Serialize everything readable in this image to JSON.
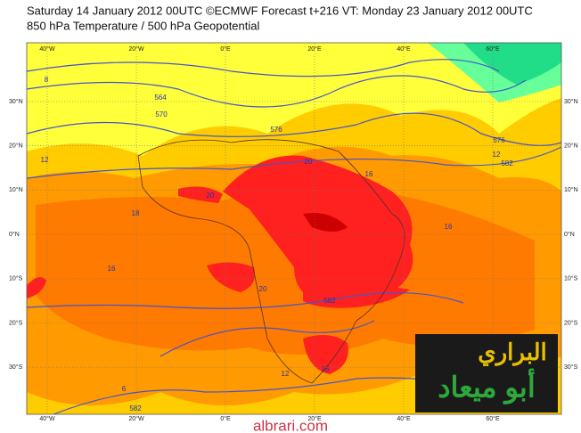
{
  "header": {
    "line1": "Saturday 14 January 2012 00UTC ©ECMWF Forecast t+216 VT: Monday 23 January 2012 00UTC",
    "line2": "850 hPa Temperature / 500 hPa Geopotential"
  },
  "longitudes": [
    "40°W",
    "20°W",
    "0°E",
    "20°E",
    "40°E",
    "60°E"
  ],
  "latitudes": [
    "30°N",
    "20°N",
    "10°N",
    "0°N",
    "10°S",
    "20°S",
    "30°S"
  ],
  "contour_labels": [
    "8",
    "564",
    "570",
    "576",
    "12",
    "18",
    "16",
    "20",
    "20",
    "20",
    "16",
    "16",
    "12",
    "576",
    "582",
    "582",
    "16",
    "12",
    "6",
    "582"
  ],
  "logo": {
    "line1": "البراري",
    "line2": "أبو ميعاد"
  },
  "watermark": "albrari.com"
}
